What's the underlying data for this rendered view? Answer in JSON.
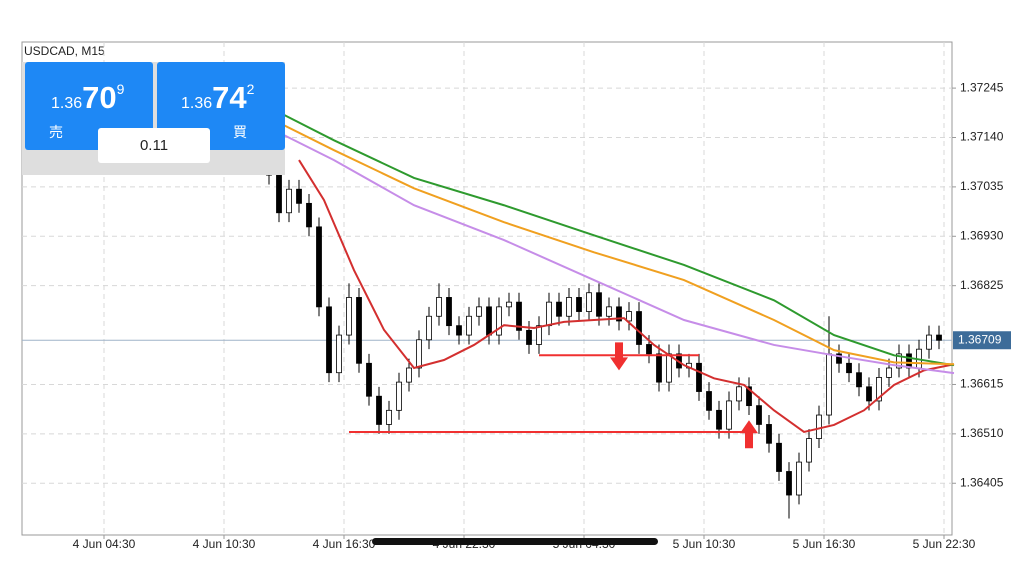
{
  "chart_data": {
    "type": "candlestick",
    "title": "USDCAD, M15",
    "x": [
      49,
      51,
      53,
      55,
      57,
      59,
      61,
      63,
      65,
      67,
      69,
      71,
      73,
      75,
      77,
      79,
      81,
      83,
      85,
      87,
      89,
      91,
      93,
      95,
      97,
      99,
      101,
      103,
      105,
      107,
      109,
      111,
      113,
      115,
      117,
      119,
      121,
      123,
      125,
      127,
      129,
      131,
      133,
      135,
      137,
      139,
      141,
      143,
      145,
      147,
      149,
      151,
      153,
      155,
      157,
      159,
      161,
      163,
      165,
      167,
      169,
      171,
      173,
      175,
      177,
      179,
      181,
      183
    ],
    "open": [
      1.371,
      1.3706,
      1.3698,
      1.3703,
      1.37,
      1.3695,
      1.3678,
      1.3664,
      1.3672,
      1.368,
      1.3666,
      1.3659,
      1.3653,
      1.3656,
      1.3662,
      1.3665,
      1.3671,
      1.3676,
      1.368,
      1.3674,
      1.3672,
      1.3676,
      1.3678,
      1.3672,
      1.3678,
      1.3679,
      1.3673,
      1.367,
      1.3674,
      1.3679,
      1.3676,
      1.368,
      1.3677,
      1.3681,
      1.3676,
      1.3678,
      1.3675,
      1.3677,
      1.367,
      1.3668,
      1.3662,
      1.3668,
      1.3665,
      1.3666,
      1.366,
      1.3656,
      1.3652,
      1.3658,
      1.3661,
      1.3657,
      1.3653,
      1.3649,
      1.3643,
      1.3638,
      1.3645,
      1.365,
      1.3655,
      1.3668,
      1.3666,
      1.3664,
      1.3661,
      1.3658,
      1.3663,
      1.3665,
      1.3668,
      1.3665,
      1.3669,
      1.3672
    ],
    "high": [
      1.3712,
      1.3708,
      1.3705,
      1.3705,
      1.3702,
      1.3697,
      1.368,
      1.3674,
      1.3683,
      1.3682,
      1.3668,
      1.3661,
      1.3658,
      1.3664,
      1.3667,
      1.3673,
      1.3678,
      1.3683,
      1.3682,
      1.3676,
      1.3678,
      1.368,
      1.368,
      1.368,
      1.3681,
      1.3681,
      1.3675,
      1.3676,
      1.3681,
      1.3681,
      1.3682,
      1.3682,
      1.3683,
      1.3683,
      1.368,
      1.368,
      1.3679,
      1.3679,
      1.3672,
      1.367,
      1.367,
      1.367,
      1.3668,
      1.3668,
      1.3662,
      1.3658,
      1.366,
      1.3663,
      1.3663,
      1.3659,
      1.3655,
      1.3651,
      1.3645,
      1.3647,
      1.3652,
      1.3657,
      1.3676,
      1.367,
      1.3668,
      1.3666,
      1.3663,
      1.3665,
      1.3667,
      1.367,
      1.367,
      1.3671,
      1.3674,
      1.3674
    ],
    "low": [
      1.3704,
      1.3696,
      1.3696,
      1.3698,
      1.3693,
      1.3676,
      1.3662,
      1.3662,
      1.367,
      1.3664,
      1.3657,
      1.3651,
      1.3651,
      1.3654,
      1.366,
      1.3663,
      1.3669,
      1.3674,
      1.3672,
      1.367,
      1.367,
      1.3674,
      1.367,
      1.367,
      1.3676,
      1.3671,
      1.3668,
      1.3668,
      1.3672,
      1.3674,
      1.3674,
      1.3675,
      1.3675,
      1.3674,
      1.3674,
      1.3673,
      1.3673,
      1.3668,
      1.3666,
      1.366,
      1.366,
      1.3663,
      1.3663,
      1.3658,
      1.3654,
      1.365,
      1.365,
      1.3656,
      1.3655,
      1.3651,
      1.3647,
      1.3641,
      1.3633,
      1.3636,
      1.3643,
      1.3648,
      1.3653,
      1.3664,
      1.3662,
      1.3659,
      1.3656,
      1.3656,
      1.3661,
      1.3663,
      1.3663,
      1.3663,
      1.3667,
      1.3669
    ],
    "close": [
      1.3706,
      1.3698,
      1.3703,
      1.37,
      1.3695,
      1.3678,
      1.3664,
      1.3672,
      1.368,
      1.3666,
      1.3659,
      1.3653,
      1.3656,
      1.3662,
      1.3665,
      1.3671,
      1.3676,
      1.368,
      1.3674,
      1.3672,
      1.3676,
      1.3678,
      1.3672,
      1.3678,
      1.3679,
      1.3673,
      1.367,
      1.3674,
      1.3679,
      1.3676,
      1.368,
      1.3677,
      1.3681,
      1.3676,
      1.3678,
      1.3675,
      1.3677,
      1.367,
      1.3668,
      1.3662,
      1.3668,
      1.3665,
      1.3666,
      1.366,
      1.3656,
      1.3652,
      1.3658,
      1.3661,
      1.3657,
      1.3653,
      1.3649,
      1.3643,
      1.3638,
      1.3645,
      1.365,
      1.3655,
      1.3668,
      1.3666,
      1.3664,
      1.3661,
      1.3658,
      1.3663,
      1.3665,
      1.3668,
      1.3665,
      1.3669,
      1.3672,
      1.36709
    ],
    "up_color": "#ffffff",
    "down_color": "#000000",
    "indicators": [
      {
        "color": "#d32f2f",
        "x": [
          55,
          60,
          66,
          72,
          78,
          84,
          90,
          96,
          102,
          108,
          114,
          120,
          126,
          132,
          138,
          144,
          150,
          156,
          162,
          168,
          174,
          180,
          186
        ],
        "values": [
          1.37092,
          1.37007,
          1.36858,
          1.36731,
          1.3665,
          1.36667,
          1.36699,
          1.36741,
          1.36735,
          1.36748,
          1.36752,
          1.36756,
          1.36699,
          1.36656,
          1.36628,
          1.36614,
          1.3656,
          1.36514,
          1.36529,
          1.3656,
          1.36614,
          1.36645,
          1.36658
        ]
      },
      {
        "color": "#2e9a2e",
        "x": [
          52,
          62,
          78,
          96,
          114,
          132,
          150,
          162,
          174,
          186
        ],
        "values": [
          1.37188,
          1.37134,
          1.37054,
          1.36996,
          1.36932,
          1.36869,
          1.36794,
          1.3672,
          1.36677,
          1.36656
        ]
      },
      {
        "color": "#f0a020",
        "x": [
          52,
          62,
          78,
          96,
          114,
          132,
          150,
          162,
          174,
          186
        ],
        "values": [
          1.37166,
          1.37113,
          1.37032,
          1.3696,
          1.36896,
          1.36837,
          1.36752,
          1.36688,
          1.36662,
          1.36658
        ]
      },
      {
        "color": "#c68de8",
        "x": [
          52,
          62,
          78,
          96,
          114,
          132,
          150,
          162,
          174,
          186
        ],
        "values": [
          1.37145,
          1.37092,
          1.36996,
          1.36922,
          1.36837,
          1.36752,
          1.36699,
          1.36677,
          1.36656,
          1.36639
        ]
      }
    ],
    "levels": [
      {
        "value": 1.36677,
        "x": [
          103,
          135
        ],
        "color": "#f03030"
      },
      {
        "value": 1.36514,
        "x": [
          65,
          145
        ],
        "color": "#f03030"
      }
    ],
    "signals": [
      {
        "x": 119,
        "value": 1.36645,
        "direction": "down",
        "color": "#f03030"
      },
      {
        "x": 145,
        "value": 1.36539,
        "direction": "up",
        "color": "#f03030"
      }
    ],
    "current_price": 1.36709,
    "xlim": [
      0,
      186
    ],
    "ylim": [
      1.36295,
      1.37343
    ],
    "xticks": [
      {
        "value": 16,
        "label": "4 Jun 04:30"
      },
      {
        "value": 40,
        "label": "4 Jun 10:30"
      },
      {
        "value": 64,
        "label": "4 Jun 16:30"
      },
      {
        "value": 88,
        "label": "4 Jun 22:30"
      },
      {
        "value": 112,
        "label": "5 Jun 04:30"
      },
      {
        "value": 136,
        "label": "5 Jun 10:30"
      },
      {
        "value": 160,
        "label": "5 Jun 16:30"
      },
      {
        "value": 184,
        "label": "5 Jun 22:30"
      }
    ],
    "yticks": [
      1.36405,
      {
        "value": 1.3651,
        "label": "1.36510"
      },
      1.36615,
      1.36825,
      {
        "value": 1.3693,
        "label": "1.36930"
      },
      1.37035,
      {
        "value": 1.3714,
        "label": "1.37140"
      },
      1.37245
    ],
    "grid": true
  },
  "trade_panel": {
    "sell": {
      "prefix": "1.36",
      "pips": "70",
      "fraction": "9",
      "label": "売"
    },
    "buy": {
      "prefix": "1.36",
      "pips": "74",
      "fraction": "2",
      "label": "買"
    },
    "volume": "0.11"
  }
}
